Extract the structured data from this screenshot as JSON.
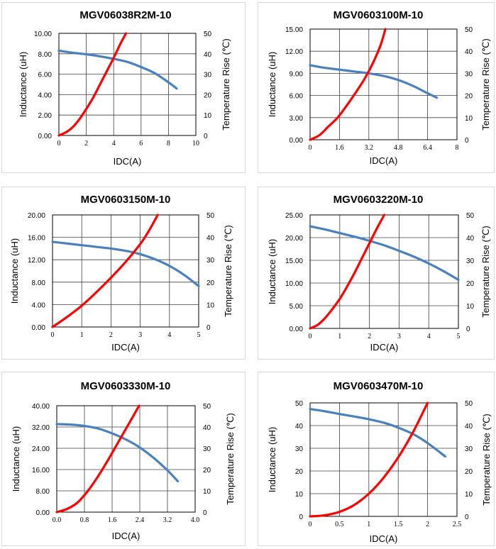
{
  "colors": {
    "inductance": "#4a80bb",
    "temperature": "#ff0000",
    "grid": "#000000"
  },
  "chart_data": [
    {
      "type": "line",
      "title": "MGV06038R2M-10",
      "xlabel": "IDC(A)",
      "ylabel": "Inductance (uH)",
      "y2label": "Temperature Rise (℃)",
      "xlim": [
        0,
        10
      ],
      "ylim": [
        0,
        10
      ],
      "y2lim": [
        0,
        50
      ],
      "x_ticks": [
        "0",
        "2",
        "4",
        "6",
        "8",
        "10"
      ],
      "y_ticks": [
        "0.00",
        "2.00",
        "4.00",
        "6.00",
        "8.00",
        "10.00"
      ],
      "y2_ticks": [
        "0",
        "10",
        "20",
        "30",
        "40",
        "50"
      ],
      "series": [
        {
          "name": "Inductance",
          "axis": "left",
          "x": [
            0,
            1,
            2,
            3,
            4,
            5,
            6,
            7,
            8,
            8.6
          ],
          "y": [
            8.3,
            8.1,
            7.95,
            7.75,
            7.5,
            7.2,
            6.7,
            6.1,
            5.2,
            4.6
          ]
        },
        {
          "name": "Temperature Rise",
          "axis": "right",
          "x": [
            0,
            0.5,
            1,
            1.5,
            2,
            2.5,
            3,
            3.5,
            4,
            4.5,
            4.9
          ],
          "y": [
            0,
            1.5,
            4,
            8,
            13,
            18.5,
            25,
            31.5,
            38,
            45,
            50
          ]
        }
      ]
    },
    {
      "type": "line",
      "title": "MGV0603100M-10",
      "xlabel": "IDC(A)",
      "ylabel": "Inductance (uH)",
      "y2label": "Temperature Rise (℃)",
      "xlim": [
        0,
        8
      ],
      "ylim": [
        0,
        15
      ],
      "y2lim": [
        0,
        50
      ],
      "x_ticks": [
        "0",
        "1.6",
        "3.2",
        "4.8",
        "6.4",
        "8"
      ],
      "y_ticks": [
        "0.00",
        "3.00",
        "6.00",
        "9.00",
        "12.00",
        "15.00"
      ],
      "y2_ticks": [
        "0",
        "10",
        "20",
        "30",
        "40",
        "50"
      ],
      "series": [
        {
          "name": "Inductance",
          "axis": "left",
          "x": [
            0,
            0.8,
            1.6,
            2.4,
            3.2,
            4.0,
            4.8,
            5.6,
            6.4,
            6.9
          ],
          "y": [
            10.1,
            9.75,
            9.5,
            9.25,
            9.0,
            8.65,
            8.1,
            7.3,
            6.3,
            5.7
          ]
        },
        {
          "name": "Temperature Rise",
          "axis": "right",
          "x": [
            0,
            0.5,
            1.0,
            1.5,
            2.0,
            2.5,
            3.0,
            3.5,
            3.85,
            4.1
          ],
          "y": [
            0,
            2,
            6,
            10,
            15.5,
            21.5,
            28,
            36,
            43,
            50
          ]
        }
      ]
    },
    {
      "type": "line",
      "title": "MGV0603150M-10",
      "xlabel": "IDC(A)",
      "ylabel": "Inductance (uH)",
      "y2label": "Temperature Rise (℃)",
      "xlim": [
        0,
        5
      ],
      "ylim": [
        0,
        20
      ],
      "y2lim": [
        0,
        50
      ],
      "x_ticks": [
        "0",
        "1",
        "2",
        "3",
        "4",
        "5"
      ],
      "y_ticks": [
        "0.00",
        "4.00",
        "8.00",
        "12.00",
        "16.00",
        "20.00"
      ],
      "y2_ticks": [
        "0",
        "10",
        "20",
        "30",
        "40",
        "50"
      ],
      "series": [
        {
          "name": "Inductance",
          "axis": "left",
          "x": [
            0,
            0.5,
            1,
            1.5,
            2,
            2.5,
            3,
            3.5,
            4,
            4.5,
            5
          ],
          "y": [
            15.2,
            14.9,
            14.6,
            14.3,
            14.0,
            13.6,
            13.0,
            12.1,
            10.9,
            9.3,
            7.3
          ]
        },
        {
          "name": "Temperature Rise",
          "axis": "right",
          "x": [
            0,
            0.5,
            1,
            1.5,
            2,
            2.5,
            3,
            3.3,
            3.6
          ],
          "y": [
            0,
            4.5,
            9.5,
            15.5,
            22,
            29,
            37,
            43,
            50
          ]
        }
      ]
    },
    {
      "type": "line",
      "title": "MGV0603220M-10",
      "xlabel": "IDC(A)",
      "ylabel": "Inductance (uH)",
      "y2label": "Temperature Rise (℃)",
      "xlim": [
        0,
        5
      ],
      "ylim": [
        0,
        25
      ],
      "y2lim": [
        0,
        50
      ],
      "x_ticks": [
        "0",
        "1",
        "2",
        "3",
        "4",
        "5"
      ],
      "y_ticks": [
        "0.00",
        "5.00",
        "10.00",
        "15.00",
        "20.00",
        "25.00"
      ],
      "y2_ticks": [
        "0",
        "10",
        "20",
        "30",
        "40",
        "50"
      ],
      "series": [
        {
          "name": "Inductance",
          "axis": "left",
          "x": [
            0,
            0.5,
            1,
            1.5,
            2,
            2.5,
            3,
            3.5,
            4,
            4.5,
            5
          ],
          "y": [
            22.5,
            21.8,
            21.0,
            20.2,
            19.3,
            18.3,
            17.1,
            15.8,
            14.3,
            12.6,
            10.7
          ]
        },
        {
          "name": "Temperature Rise",
          "axis": "right",
          "x": [
            0,
            0.25,
            0.5,
            0.75,
            1,
            1.25,
            1.5,
            1.75,
            2,
            2.25,
            2.5
          ],
          "y": [
            0,
            1.5,
            4.5,
            8.5,
            13,
            18.5,
            24.5,
            31,
            37.5,
            44,
            50
          ]
        }
      ]
    },
    {
      "type": "line",
      "title": "MGV0603330M-10",
      "xlabel": "IDC(A)",
      "ylabel": "Inductance (uH)",
      "y2label": "Temperature Rise (℃)",
      "xlim": [
        0,
        4
      ],
      "ylim": [
        0,
        40
      ],
      "y2lim": [
        0,
        50
      ],
      "x_ticks": [
        "0.0",
        "0.8",
        "1.6",
        "2.4",
        "3.2",
        "4.0"
      ],
      "y_ticks": [
        "0.00",
        "8.00",
        "16.00",
        "24.00",
        "32.00",
        "40.00"
      ],
      "y2_ticks": [
        "0",
        "10",
        "20",
        "30",
        "40",
        "50"
      ],
      "series": [
        {
          "name": "Inductance",
          "axis": "left",
          "x": [
            0,
            0.4,
            0.8,
            1.2,
            1.6,
            2.0,
            2.4,
            2.8,
            3.2,
            3.5
          ],
          "y": [
            33.1,
            32.9,
            32.4,
            31.4,
            29.6,
            27.3,
            24.3,
            20.4,
            15.7,
            11.6
          ]
        },
        {
          "name": "Temperature Rise",
          "axis": "right",
          "x": [
            0,
            0.3,
            0.6,
            0.9,
            1.2,
            1.5,
            1.8,
            2.1,
            2.38
          ],
          "y": [
            0,
            1.5,
            4.5,
            10,
            17,
            25,
            33.5,
            42,
            50
          ]
        }
      ]
    },
    {
      "type": "line",
      "title": "MGV0603470M-10",
      "xlabel": "IDC(A)",
      "ylabel": "Inductance (uH)",
      "y2label": "Temperature Rise (℃)",
      "xlim": [
        0,
        2.5
      ],
      "ylim": [
        0,
        50
      ],
      "y2lim": [
        0,
        50
      ],
      "x_ticks": [
        "0",
        "0.5",
        "1",
        "1.5",
        "2",
        "2.5"
      ],
      "y_ticks": [
        "0",
        "10",
        "20",
        "30",
        "40",
        "50"
      ],
      "y2_ticks": [
        "0",
        "10",
        "20",
        "30",
        "40",
        "50"
      ],
      "series": [
        {
          "name": "Inductance",
          "axis": "left",
          "x": [
            0,
            0.25,
            0.5,
            0.75,
            1.0,
            1.25,
            1.5,
            1.75,
            2.0,
            2.3
          ],
          "y": [
            47.3,
            46.3,
            45.1,
            44.0,
            42.8,
            41.3,
            39.1,
            36.3,
            32.3,
            26.4
          ]
        },
        {
          "name": "Temperature Rise",
          "axis": "right",
          "x": [
            0,
            0.25,
            0.5,
            0.75,
            1.0,
            1.25,
            1.5,
            1.75,
            2.0
          ],
          "y": [
            0,
            0.5,
            2,
            5,
            10,
            17,
            26,
            37,
            50
          ]
        }
      ]
    }
  ]
}
